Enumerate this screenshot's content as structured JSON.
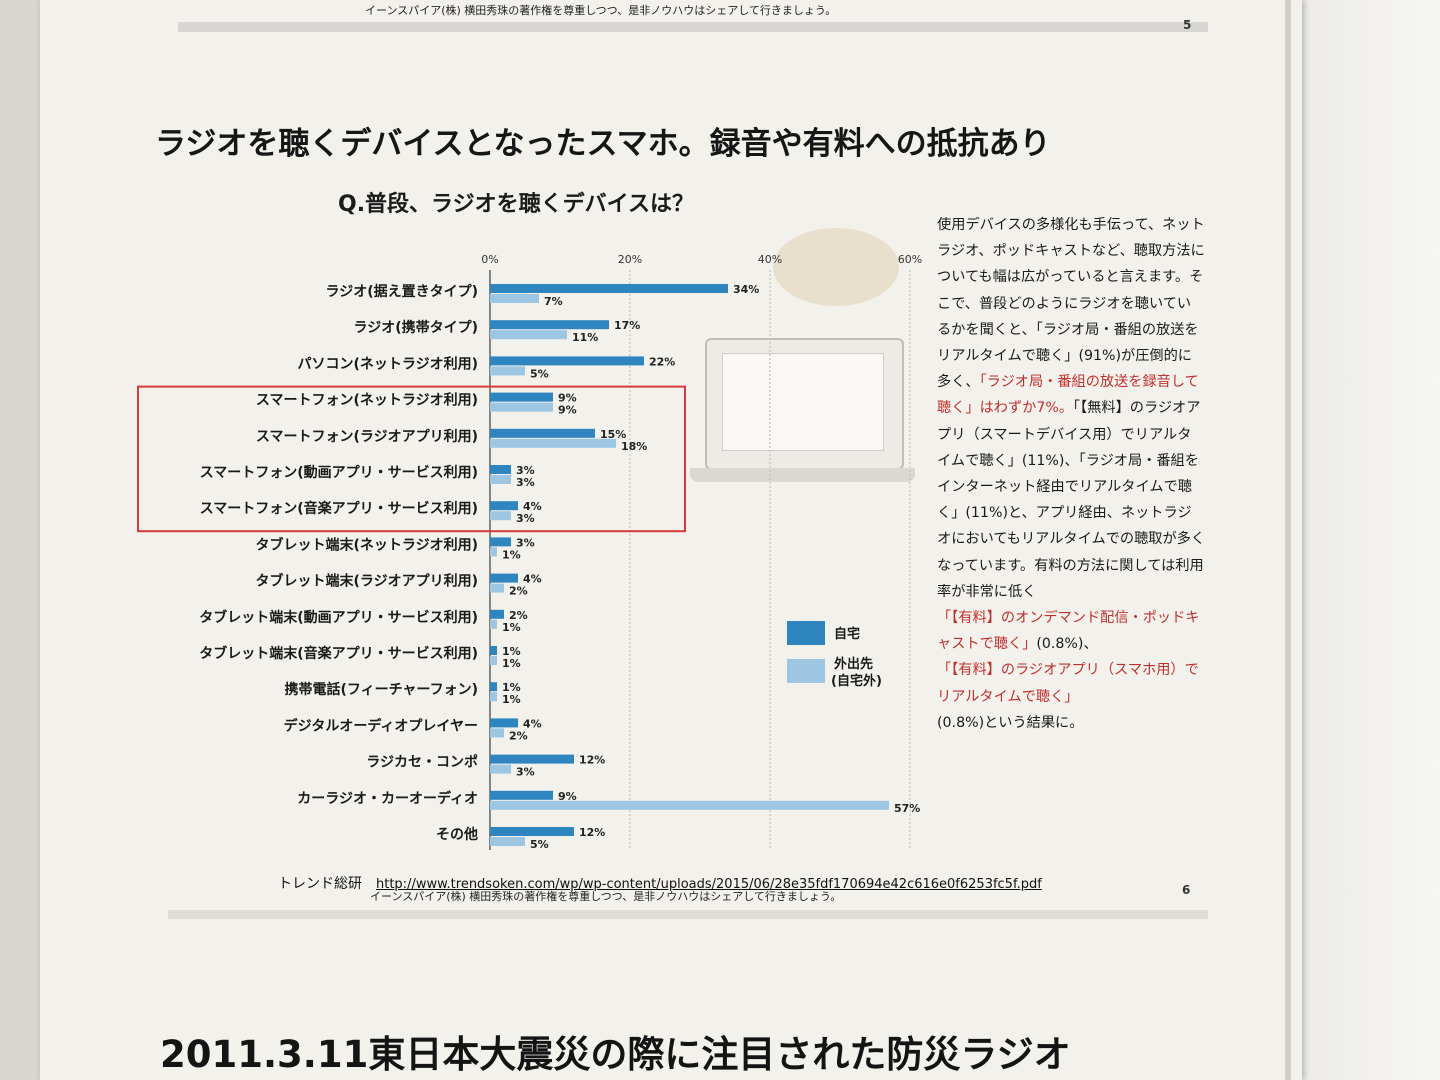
{
  "page": {
    "previous_footer": "イーンスパイア(株) 横田秀珠の著作権を尊重しつつ、是非ノウハウはシェアして行きましょう。",
    "previous_page_number": "5",
    "headline": "ラジオを聴くデバイスとなったスマホ。録音や有料への抵抗あり",
    "question": "Q.普段、ラジオを聴くデバイスは？",
    "source_label": "トレンド総研",
    "source_url": "http://www.trendsoken.com/wp/wp-content/uploads/2015/06/28e35fdf170694e42c616e0f6253fc5f.pdf",
    "credit": "イーンスパイア(株) 横田秀珠の著作権を尊重しつつ、是非ノウハウはシェアして行きましょう。",
    "page_number": "6",
    "next_headline": "2011.3.11東日本大震災の際に注目された防災ラジオ"
  },
  "sidebar": {
    "p1": "使用デバイスの多様化も手伝って、ネットラジオ、ポッドキャストなど、聴取方法についても幅は広がっていると言えます。そこで、普段どのようにラジオを聴いているかを聞くと、「ラジオ局・番組の放送をリアルタイムで聴く」(91%)が圧倒的に多く、",
    "red1": "「ラジオ局・番組の放送を録音して聴く」はわずか7%。",
    "p2": "「【無料】のラジオアプリ（スマートデバイス用）でリアルタイムで聴く」(11%)、「ラジオ局・番組をインターネット経由でリアルタイムで聴く」(11%)と、アプリ経由、ネットラジオにおいてもリアルタイムでの聴取が多くなっています。有料の方法に関しては利用率が非常に低く",
    "red2": "「【有料】のオンデマンド配信・ポッドキャストで聴く」",
    "p3": "(0.8%)、",
    "red3": "「【有料】のラジオアプリ（スマホ用）でリアルタイムで聴く」",
    "p4": "(0.8%)という結果に。"
  },
  "chart_data": {
    "type": "bar",
    "orientation": "horizontal",
    "x_ticks": [
      "0%",
      "20%",
      "40%",
      "60%"
    ],
    "xlim": [
      0,
      60
    ],
    "categories": [
      "ラジオ(据え置きタイプ)",
      "ラジオ(携帯タイプ)",
      "パソコン(ネットラジオ利用)",
      "スマートフォン(ネットラジオ利用)",
      "スマートフォン(ラジオアプリ利用)",
      "スマートフォン(動画アプリ・サービス利用)",
      "スマートフォン(音楽アプリ・サービス利用)",
      "タブレット端末(ネットラジオ利用)",
      "タブレット端末(ラジオアプリ利用)",
      "タブレット端末(動画アプリ・サービス利用)",
      "タブレット端末(音楽アプリ・サービス利用)",
      "携帯電話(フィーチャーフォン)",
      "デジタルオーディオプレイヤー",
      "ラジカセ・コンポ",
      "カーラジオ・カーオーディオ",
      "その他"
    ],
    "series": [
      {
        "name": "自宅",
        "color": "#2f85c0",
        "values": [
          34,
          17,
          22,
          9,
          15,
          3,
          4,
          3,
          4,
          2,
          1,
          1,
          4,
          12,
          9,
          12
        ]
      },
      {
        "name": "外出先(自宅外)",
        "color": "#9cc6e2",
        "values": [
          7,
          11,
          5,
          9,
          18,
          3,
          3,
          1,
          2,
          1,
          1,
          1,
          2,
          3,
          57,
          5
        ]
      }
    ],
    "highlighted_categories": [
      3,
      4,
      5,
      6
    ],
    "highlight_color": "#d93a3a",
    "legend_position": "right"
  }
}
